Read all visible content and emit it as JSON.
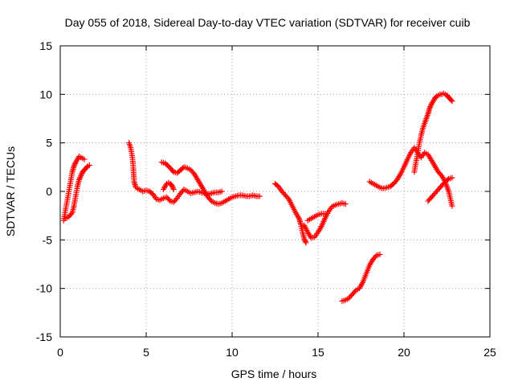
{
  "chart_data": {
    "type": "scatter",
    "title": "Day 055 of 2018, Sidereal Day-to-day VTEC variation (SDTVAR) for receiver cuib",
    "xlabel": "GPS time / hours",
    "ylabel": "SDTVAR / TECUs",
    "xlim": [
      0,
      25
    ],
    "ylim": [
      -15,
      15
    ],
    "xticks": [
      0,
      5,
      10,
      15,
      20,
      25
    ],
    "yticks": [
      -15,
      -10,
      -5,
      0,
      5,
      10,
      15
    ],
    "grid": true,
    "marker": "+",
    "series_color": "#ff0000",
    "series": [
      {
        "name": "arc-1",
        "x": [
          0.2,
          0.3,
          0.4,
          0.5,
          0.6,
          0.7,
          0.8,
          0.9,
          1.0,
          1.1,
          1.2,
          1.3,
          1.4
        ],
        "y": [
          -3.0,
          -2.0,
          -1.0,
          0.0,
          1.0,
          2.0,
          2.6,
          3.0,
          3.3,
          3.6,
          3.5,
          3.4,
          3.3
        ]
      },
      {
        "name": "arc-2",
        "x": [
          0.3,
          0.5,
          0.7,
          0.8,
          0.9,
          1.0,
          1.1,
          1.2,
          1.3,
          1.4,
          1.5,
          1.6,
          1.7
        ],
        "y": [
          -2.8,
          -2.6,
          -2.2,
          -1.5,
          -0.5,
          0.5,
          1.2,
          1.6,
          2.0,
          2.2,
          2.4,
          2.6,
          2.7
        ]
      },
      {
        "name": "arc-3",
        "x": [
          4.0,
          4.1,
          4.2,
          4.25,
          4.3,
          4.4,
          4.6,
          4.8,
          5.0,
          5.2,
          5.4,
          5.6,
          5.8,
          6.0,
          6.2,
          6.4,
          6.6,
          6.8,
          7.0,
          7.2,
          7.4,
          7.6,
          7.8,
          8.0,
          8.2,
          8.4,
          8.6,
          8.8,
          9.0,
          9.2,
          9.4
        ],
        "y": [
          5.0,
          4.5,
          3.5,
          2.5,
          1.0,
          0.4,
          0.2,
          0.0,
          0.1,
          0.0,
          -0.3,
          -0.8,
          -0.9,
          -0.7,
          -0.6,
          -1.0,
          -1.1,
          -0.7,
          -0.2,
          0.2,
          0.0,
          -0.2,
          -0.1,
          0.0,
          -0.1,
          -0.2,
          -0.3,
          -0.2,
          -0.1,
          -0.1,
          0.0
        ]
      },
      {
        "name": "arc-4",
        "x": [
          5.9,
          6.1,
          6.3,
          6.5,
          6.6,
          6.8,
          7.0,
          7.2,
          7.4,
          7.6,
          7.8,
          8.0,
          8.2,
          8.4,
          8.6,
          8.8,
          9.0,
          9.2,
          9.4,
          9.6,
          9.8,
          10.0,
          10.2,
          10.4,
          10.6,
          10.8,
          11.0,
          11.2,
          11.4,
          11.6
        ],
        "y": [
          3.0,
          2.9,
          2.6,
          2.2,
          2.0,
          1.9,
          2.2,
          2.5,
          2.4,
          2.2,
          1.8,
          1.2,
          0.6,
          0.0,
          -0.6,
          -1.0,
          -1.2,
          -1.3,
          -1.2,
          -1.0,
          -0.8,
          -0.6,
          -0.5,
          -0.4,
          -0.4,
          -0.5,
          -0.5,
          -0.4,
          -0.5,
          -0.5
        ]
      },
      {
        "name": "arc-5",
        "x": [
          6.0,
          6.1,
          6.2,
          6.3,
          6.4,
          6.5,
          6.6
        ],
        "y": [
          0.2,
          0.5,
          0.8,
          0.9,
          0.8,
          0.6,
          0.2
        ]
      },
      {
        "name": "arc-6",
        "x": [
          12.5,
          12.7,
          12.9,
          13.1,
          13.3,
          13.5,
          13.7,
          13.9,
          14.0,
          14.1,
          14.2,
          14.3
        ],
        "y": [
          0.8,
          0.5,
          0.0,
          -0.4,
          -0.8,
          -1.5,
          -2.2,
          -2.8,
          -3.4,
          -4.2,
          -4.9,
          -5.3
        ]
      },
      {
        "name": "arc-7",
        "x": [
          14.2,
          14.4,
          14.6,
          14.8,
          15.0,
          15.2,
          15.4,
          15.6,
          15.8,
          16.0,
          16.2,
          16.4,
          16.6
        ],
        "y": [
          -3.5,
          -4.2,
          -4.8,
          -4.7,
          -4.2,
          -3.6,
          -2.8,
          -2.1,
          -1.6,
          -1.4,
          -1.3,
          -1.2,
          -1.3
        ]
      },
      {
        "name": "arc-8",
        "x": [
          14.4,
          14.6,
          14.8,
          15.0,
          15.2,
          15.4
        ],
        "y": [
          -3.0,
          -2.8,
          -2.6,
          -2.4,
          -2.3,
          -2.3
        ]
      },
      {
        "name": "arc-9",
        "x": [
          16.4,
          16.6,
          16.8,
          17.0,
          17.2,
          17.4,
          17.6,
          17.8,
          18.0,
          18.2,
          18.4,
          18.6
        ],
        "y": [
          -11.3,
          -11.2,
          -11.0,
          -10.6,
          -10.2,
          -10.0,
          -9.4,
          -8.5,
          -7.6,
          -7.0,
          -6.6,
          -6.5
        ]
      },
      {
        "name": "arc-10",
        "x": [
          18.0,
          18.2,
          18.4,
          18.6,
          18.8,
          19.0,
          19.2,
          19.4,
          19.6,
          19.8,
          20.0,
          20.2,
          20.4,
          20.6,
          20.8,
          21.0,
          21.2,
          21.4,
          21.6,
          21.8,
          22.0,
          22.2,
          22.4,
          22.6,
          22.8
        ],
        "y": [
          1.0,
          0.8,
          0.6,
          0.4,
          0.3,
          0.4,
          0.5,
          0.8,
          1.2,
          1.8,
          2.5,
          3.3,
          4.0,
          4.5,
          4.0,
          3.5,
          4.0,
          3.8,
          3.2,
          2.6,
          2.0,
          1.6,
          1.0,
          0.0,
          -1.5
        ]
      },
      {
        "name": "arc-11",
        "x": [
          20.6,
          20.7,
          20.8,
          20.9,
          21.0,
          21.1,
          21.2,
          21.3,
          21.4,
          21.5,
          21.6,
          21.7,
          21.8,
          21.9,
          22.0,
          22.1,
          22.2,
          22.3,
          22.4,
          22.5,
          22.6,
          22.7,
          22.8
        ],
        "y": [
          2.0,
          3.0,
          4.0,
          5.0,
          5.8,
          6.5,
          7.0,
          7.5,
          8.0,
          8.6,
          9.0,
          9.3,
          9.6,
          9.8,
          9.9,
          10.0,
          10.0,
          10.1,
          10.0,
          9.9,
          9.7,
          9.5,
          9.3
        ]
      },
      {
        "name": "arc-12",
        "x": [
          21.4,
          21.6,
          21.8,
          22.0,
          22.2,
          22.4,
          22.6,
          22.8
        ],
        "y": [
          -1.0,
          -0.6,
          -0.2,
          0.2,
          0.6,
          1.0,
          1.3,
          1.4
        ]
      }
    ]
  }
}
